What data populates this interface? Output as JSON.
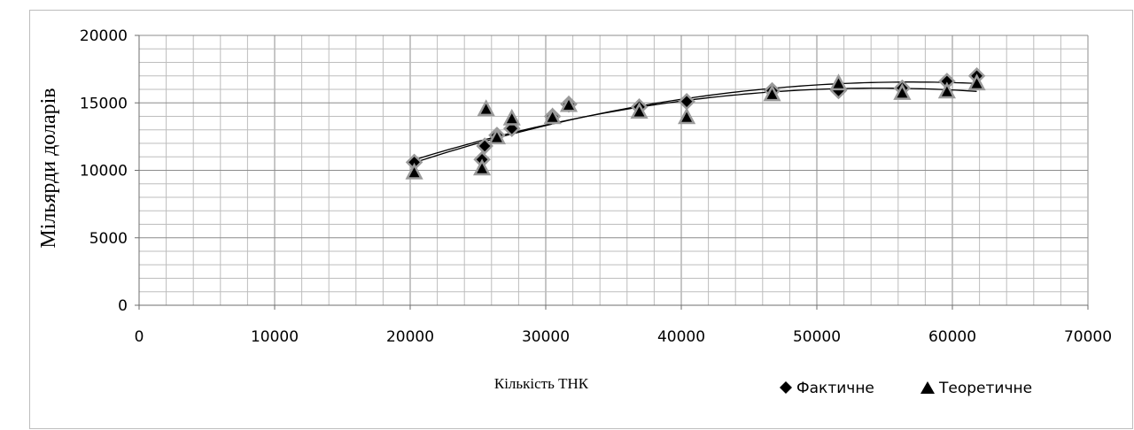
{
  "chart_data": {
    "type": "scatter",
    "xlabel": "Кількість ТНК",
    "ylabel": "Мільярди доларів",
    "xlim": [
      0,
      70000
    ],
    "ylim": [
      0,
      20000
    ],
    "x_ticks": [
      "0",
      "10000",
      "20000",
      "30000",
      "40000",
      "50000",
      "60000",
      "70000"
    ],
    "y_ticks": [
      "0",
      "5000",
      "10000",
      "15000",
      "20000"
    ],
    "grid": true,
    "legend_position": "bottom-right",
    "series": [
      {
        "name": "Фактичне",
        "marker": "diamond",
        "x": [
          20300,
          25300,
          25500,
          26400,
          27500,
          30500,
          31700,
          36900,
          40400,
          46700,
          51600,
          56300,
          59600,
          61800
        ],
        "y": [
          10600,
          10800,
          11800,
          12600,
          13100,
          14000,
          14900,
          14700,
          15100,
          15900,
          15900,
          16100,
          16600,
          17000
        ]
      },
      {
        "name": "Теоретичне",
        "marker": "triangle",
        "x": [
          20300,
          25300,
          25600,
          26400,
          27500,
          30500,
          31700,
          36900,
          40400,
          46700,
          51600,
          56300,
          59600,
          61800
        ],
        "y": [
          9800,
          10100,
          14500,
          12400,
          13800,
          13900,
          14800,
          14300,
          13900,
          15600,
          16400,
          15700,
          15800,
          16400
        ]
      }
    ]
  }
}
